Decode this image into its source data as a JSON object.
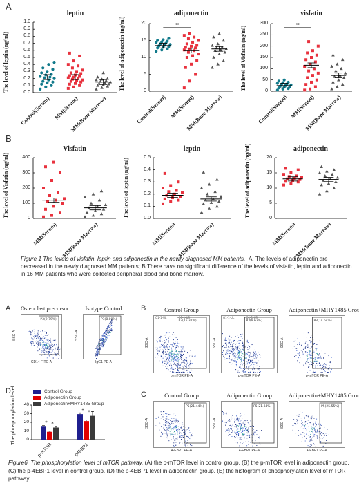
{
  "figure1": {
    "letter_a": "A",
    "letter_b": "B",
    "caption_title": "Figure 1 The levels of visfatin, leptin and adiponectin in the newly diagnosed MM patients.",
    "caption_body": "A: The levels of adiponectin are decreased in the newly diagnosed MM patients; B:There have no significant difference of the levels of visfatin, leptin and adiponectin in 16 MM patients who were collected peripheral blood and bone marrow."
  },
  "figure6": {
    "letters": {
      "a": "A",
      "b": "B",
      "c": "C",
      "d": "D"
    },
    "a_titles": [
      "Osteoclast precursor",
      "Isotype Control"
    ],
    "a_gate_labels": [
      "P3(9.79%)",
      "P3(8.00%)"
    ],
    "a_axes": {
      "y": "SSC-A",
      "x1": "CD14 FITC-A",
      "x2": "IgG1 PE-A"
    },
    "b_titles": [
      "Control Group",
      "Adiponectin Group",
      "Adiponectin+MHY1485 Group"
    ],
    "b_gate_labels": [
      "P3(15.31%)",
      "P3(9.62%)",
      "P3(14.64%)"
    ],
    "b_quad_labels": [
      "Q1-1-UL",
      "Q1-1-UR"
    ],
    "b_axes": {
      "y": "SSC-A",
      "x": "p-mTOR PE-A",
      "scale": "(x 10³)"
    },
    "c_titles": [
      "Control Group",
      "Adiponectin Group",
      "Adiponectin+MHY1485 Group"
    ],
    "c_gate_labels": [
      "P5(21.44%)",
      "P5(21.84%)",
      "P5(25.55%)"
    ],
    "c_axes": {
      "y": "SSC-A",
      "x": "4-EBP1 PE-A",
      "scale": "(x 10³)"
    },
    "caption_title": "Figure6. The phosphorylation level of mTOR pathway.",
    "caption_body": "(A) the p-mTOR level in control group. (B) the p-mTOR level in adiponectin group. (C) the p-4EBP1 level in control group. (D) the p-4EBP1 level in adiponectin group. (E) the histogram of phosphorylation level of mTOR pathway."
  },
  "chart_data": [
    {
      "panel": "A",
      "type": "scatter",
      "title": "leptin",
      "ylabel": "The level of leptin (ng/ml)",
      "ylim": [
        0,
        1.0
      ],
      "yticks": [
        "0.0",
        "0.1",
        "0.2",
        "0.3",
        "0.4",
        "0.5",
        "0.6",
        "0.7",
        "0.8",
        "0.9",
        "1.0"
      ],
      "categories": [
        "Control(Serum)",
        "MM(Serum)",
        "MM(Bone Marrow)"
      ],
      "series": [
        {
          "values": [
            0.05,
            0.08,
            0.1,
            0.12,
            0.14,
            0.15,
            0.16,
            0.18,
            0.2,
            0.21,
            0.22,
            0.23,
            0.25,
            0.26,
            0.28,
            0.3,
            0.33,
            0.35,
            0.4,
            0.43
          ]
        },
        {
          "values": [
            0.06,
            0.08,
            0.1,
            0.12,
            0.13,
            0.15,
            0.16,
            0.17,
            0.18,
            0.19,
            0.2,
            0.21,
            0.22,
            0.23,
            0.24,
            0.25,
            0.27,
            0.28,
            0.3,
            0.32,
            0.35,
            0.38,
            0.4,
            0.45,
            0.52,
            0.56
          ]
        },
        {
          "values": [
            0.05,
            0.07,
            0.09,
            0.1,
            0.11,
            0.12,
            0.13,
            0.14,
            0.15,
            0.16,
            0.17,
            0.18,
            0.19,
            0.2,
            0.22,
            0.28
          ]
        }
      ],
      "means": [
        0.22,
        0.22,
        0.15
      ]
    },
    {
      "panel": "A",
      "type": "scatter",
      "title": "adiponectin",
      "ylabel": "The level of adiponectin (ng/ml)",
      "ylim": [
        0,
        20
      ],
      "yticks": [
        "0",
        "5",
        "10",
        "15",
        "20"
      ],
      "categories": [
        "Control(Serum)",
        "MM(Serum)",
        "MM(Bone Marrow)"
      ],
      "series": [
        {
          "values": [
            11.8,
            12.2,
            12.5,
            12.8,
            13.0,
            13.2,
            13.4,
            13.6,
            13.8,
            14.0,
            14.2,
            14.4,
            14.6,
            14.8,
            15.0,
            15.2,
            15.6
          ]
        },
        {
          "values": [
            1,
            3,
            5,
            7,
            8,
            9,
            10,
            10.5,
            11,
            11.5,
            12,
            12.2,
            12.5,
            12.8,
            13,
            13.3,
            13.6,
            14,
            14.5,
            15,
            15.5,
            16,
            16.5,
            17
          ]
        },
        {
          "values": [
            7,
            8,
            9,
            10,
            11,
            11.5,
            12,
            12.2,
            12.5,
            12.8,
            13,
            13.5,
            14,
            15,
            16,
            17
          ]
        }
      ],
      "means": [
        13.5,
        12.0,
        12.5
      ],
      "annotation": "*"
    },
    {
      "panel": "A",
      "type": "scatter",
      "title": "visfatin",
      "ylabel": "The level of Visfatin (ng/ml)",
      "ylim": [
        0,
        300
      ],
      "yticks": [
        "0",
        "50",
        "100",
        "150",
        "200",
        "250",
        "300"
      ],
      "categories": [
        "Control(Serum)",
        "MM(Serum)",
        "MM(Bone Marrow)"
      ],
      "series": [
        {
          "values": [
            5,
            10,
            12,
            15,
            18,
            20,
            22,
            25,
            28,
            30,
            32,
            35,
            38,
            40,
            45,
            50
          ]
        },
        {
          "values": [
            5,
            10,
            20,
            30,
            40,
            50,
            60,
            70,
            80,
            90,
            100,
            110,
            120,
            130,
            140,
            150,
            160,
            170,
            180,
            200,
            220
          ]
        },
        {
          "values": [
            10,
            20,
            30,
            40,
            50,
            60,
            65,
            70,
            80,
            90,
            100,
            110,
            120,
            140,
            160
          ]
        }
      ],
      "means": [
        25,
        115,
        70
      ],
      "annotation": "*"
    },
    {
      "panel": "B",
      "type": "scatter",
      "title": "Visfatin",
      "ylabel": "The level of Visfatin (ng/ml)",
      "ylim": [
        0,
        400
      ],
      "yticks": [
        "0",
        "100",
        "200",
        "300",
        "400"
      ],
      "categories": [
        "MM(Serum)",
        "MM(Bone Marrow)"
      ],
      "series": [
        {
          "values": [
            10,
            20,
            40,
            60,
            80,
            100,
            110,
            120,
            130,
            150,
            170,
            200,
            250,
            300,
            340,
            370
          ]
        },
        {
          "values": [
            10,
            20,
            30,
            40,
            50,
            60,
            70,
            80,
            90,
            100,
            120,
            140,
            160,
            180
          ]
        }
      ],
      "means": [
        120,
        70
      ]
    },
    {
      "panel": "B",
      "type": "scatter",
      "title": "leptin",
      "ylabel": "The level of leptin (ng/ml)",
      "ylim": [
        0,
        0.5
      ],
      "yticks": [
        "0.0",
        "0.1",
        "0.2",
        "0.3",
        "0.4",
        "0.5"
      ],
      "categories": [
        "MM(Serum)",
        "MM(Bone Marrow)"
      ],
      "series": [
        {
          "values": [
            0.12,
            0.14,
            0.15,
            0.16,
            0.17,
            0.18,
            0.19,
            0.2,
            0.21,
            0.22,
            0.23,
            0.25,
            0.27,
            0.3,
            0.37
          ]
        },
        {
          "values": [
            0.05,
            0.08,
            0.1,
            0.12,
            0.13,
            0.14,
            0.15,
            0.16,
            0.18,
            0.2,
            0.22,
            0.25,
            0.28,
            0.32,
            0.38
          ]
        }
      ],
      "means": [
        0.19,
        0.16
      ]
    },
    {
      "panel": "B",
      "type": "scatter",
      "title": "adiponectin",
      "ylabel": "The level of adiponectin (ng/ml)",
      "ylim": [
        0,
        20
      ],
      "yticks": [
        "0",
        "5",
        "10",
        "15",
        "20"
      ],
      "categories": [
        "MM(Serum)",
        "MM(Bone Marrow)"
      ],
      "series": [
        {
          "values": [
            11,
            11.5,
            12,
            12.2,
            12.5,
            12.8,
            13,
            13.2,
            13.5,
            13.8,
            14,
            14.5,
            15,
            16,
            16.5
          ]
        },
        {
          "values": [
            8,
            9,
            10,
            11,
            11.5,
            12,
            12.5,
            13,
            13.5,
            14,
            14.5,
            15,
            15.5,
            16,
            17
          ]
        }
      ],
      "means": [
        13.0,
        12.8
      ]
    },
    {
      "panel": "D",
      "type": "bar",
      "title": "",
      "ylabel": "The phosphorylation level",
      "ylim": [
        0,
        40
      ],
      "yticks": [
        "0",
        "10",
        "20",
        "30",
        "40"
      ],
      "categories": [
        "p-mTOR",
        "p4EBP1"
      ],
      "series": [
        {
          "name": "Control Group",
          "color": "#1f1f8f",
          "values": [
            15,
            29.5
          ],
          "errors": [
            1.2,
            1.5
          ]
        },
        {
          "name": "Adiponectin Group",
          "color": "#e00000",
          "values": [
            9,
            21.5
          ],
          "errors": [
            0.8,
            1.2
          ]
        },
        {
          "name": "Adiponectin+MHY1485 Group",
          "color": "#3a3a3a",
          "values": [
            14,
            27.5
          ],
          "errors": [
            1.2,
            5
          ]
        }
      ],
      "annotations": [
        "*",
        "*",
        "*",
        "*"
      ]
    }
  ]
}
